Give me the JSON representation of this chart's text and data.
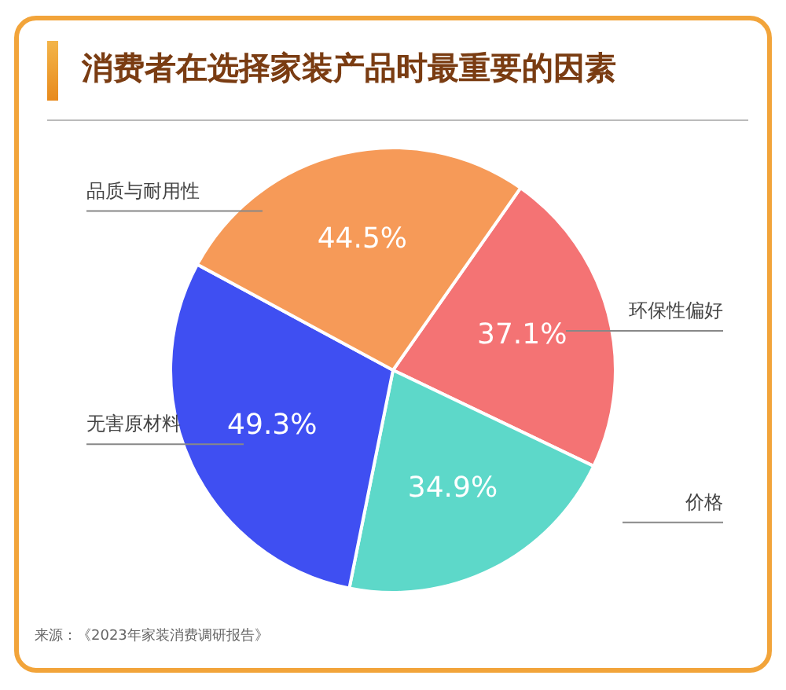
{
  "chart_data": {
    "type": "pie",
    "title": "消费者在选择家装产品时最重要的因素",
    "categories": [
      "环保性偏好",
      "价格",
      "无害原材料",
      "品质与耐用性"
    ],
    "values": [
      37.1,
      34.9,
      49.3,
      44.5
    ],
    "colors": [
      "#f47374",
      "#5dd8c9",
      "#3f4ff2",
      "#f69a58"
    ],
    "value_labels": [
      "37.1%",
      "34.9%",
      "49.3%",
      "44.5%"
    ],
    "annotations": [
      "来源：《2023年家装消费调研报告》"
    ],
    "legend": false
  }
}
